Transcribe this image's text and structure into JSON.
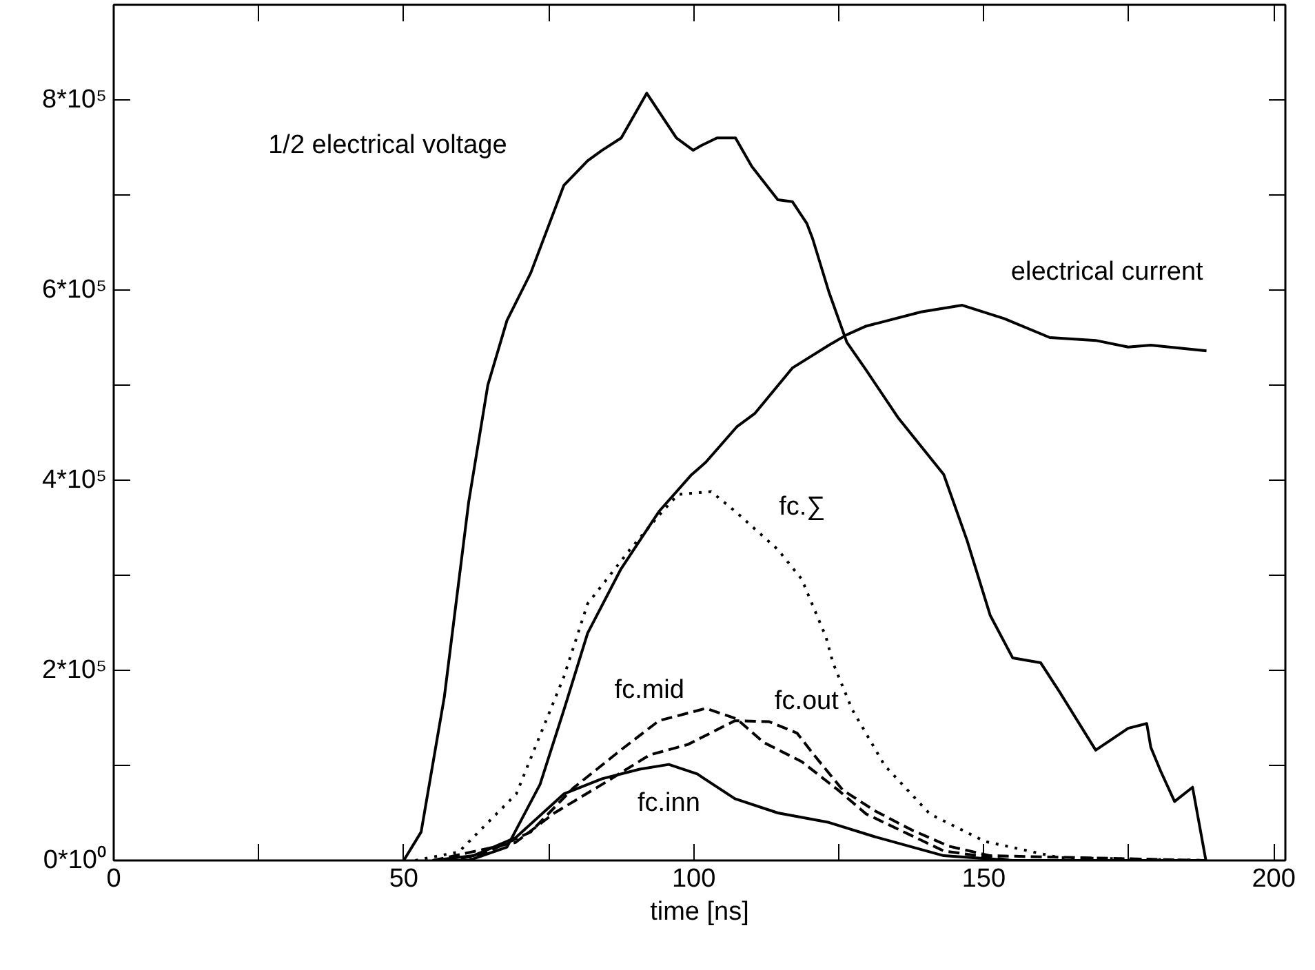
{
  "chart_data": {
    "type": "line",
    "xlabel": "time [ns]",
    "xlim": [
      0,
      202
    ],
    "ylim": [
      0,
      900000
    ],
    "xticks": [
      0,
      {
        "value": 25,
        "label": null
      },
      50,
      {
        "value": 75,
        "label": null
      },
      100,
      {
        "value": 125,
        "label": null
      },
      150,
      {
        "value": 175,
        "label": null
      },
      200
    ],
    "yticks": [
      {
        "value": 0,
        "label": "0*10⁰"
      },
      {
        "value": 100000,
        "label": null
      },
      {
        "value": 200000,
        "label": "2*10⁵"
      },
      {
        "value": 300000,
        "label": null
      },
      {
        "value": 400000,
        "label": "4*10⁵"
      },
      {
        "value": 500000,
        "label": null
      },
      {
        "value": 600000,
        "label": "6*10⁵"
      },
      {
        "value": 700000,
        "label": null
      },
      {
        "value": 800000,
        "label": "8*10⁵"
      }
    ],
    "grid": false,
    "series": [
      {
        "name": "1/2 electrical voltage",
        "color": "#000000",
        "line_style": "solid",
        "x": [
          50,
          53,
          57,
          61.2,
          64.5,
          67.8,
          71.9,
          77.6,
          81.7,
          84.2,
          87.5,
          91.9,
          97,
          99.9,
          101.3,
          104,
          107.2,
          110,
          114.5,
          117,
          119.5,
          120.5,
          123.3,
          126.4,
          129.7,
          135.2,
          143.1,
          147.1,
          151.1,
          155,
          159.8,
          163,
          169.3,
          174.9,
          178.1,
          178.8,
          180.5,
          182.9,
          186,
          188.3
        ],
        "values": [
          0,
          30000,
          172000,
          377000,
          500000,
          568000,
          618000,
          710000,
          736000,
          747000,
          760000,
          807000,
          760000,
          747000,
          752000,
          760000,
          760000,
          730000,
          695000,
          693000,
          670000,
          654000,
          598000,
          545000,
          516000,
          466000,
          406000,
          337000,
          258000,
          213000,
          208000,
          178000,
          116000,
          139000,
          144000,
          119000,
          94000,
          62000,
          77000,
          0
        ]
      },
      {
        "name": "electrical current",
        "color": "#000000",
        "line_style": "solid",
        "x": [
          55,
          61.2,
          67.8,
          73.5,
          77.6,
          81.7,
          87.4,
          94,
          99.5,
          102.1,
          107.4,
          110.5,
          117,
          123.3,
          126.4,
          129.7,
          139.2,
          146.3,
          153.5,
          161.4,
          169.3,
          174.9,
          178.8,
          188.4
        ],
        "values": [
          0,
          0,
          14000,
          80000,
          158000,
          239000,
          306000,
          367000,
          405000,
          419000,
          456000,
          470000,
          518000,
          542000,
          553000,
          562000,
          577000,
          584000,
          570000,
          550000,
          547000,
          540000,
          542000,
          536000
        ]
      },
      {
        "name": "fc.∑",
        "color": "#000000",
        "line_style": "dotted",
        "x": [
          52,
          59.5,
          69.4,
          77.6,
          81.7,
          89,
          94,
          97.3,
          103,
          107.2,
          114.5,
          118.6,
          122.8,
          124,
          127.3,
          132.9,
          140.7,
          150.2,
          163,
          188.3
        ],
        "values": [
          0,
          9000,
          70000,
          193000,
          270000,
          327000,
          363000,
          385000,
          388000,
          367000,
          327000,
          296000,
          235000,
          208000,
          159000,
          100000,
          49000,
          20000,
          3000,
          0
        ]
      },
      {
        "name": "fc.mid",
        "color": "#000000",
        "line_style": "dashed",
        "x": [
          57,
          63,
          71.9,
          79.2,
          87.4,
          94,
          102.1,
          107.4,
          112.1,
          118.6,
          124.9,
          129.7,
          135.2,
          143.1,
          155,
          186
        ],
        "values": [
          0,
          5000,
          30000,
          76000,
          116000,
          147000,
          160000,
          149000,
          124000,
          104000,
          74000,
          49000,
          33000,
          10000,
          0,
          0
        ]
      },
      {
        "name": "fc.out",
        "color": "#000000",
        "line_style": "dashed",
        "x": [
          55,
          69.3,
          76,
          84.2,
          92.4,
          99,
          107.1,
          113,
          117.8,
          121,
          125.7,
          131.3,
          137.6,
          144,
          151.1,
          188.3
        ],
        "values": [
          0,
          19000,
          50000,
          80000,
          111000,
          122000,
          147000,
          146000,
          134000,
          109000,
          74000,
          52000,
          32000,
          15000,
          5000,
          0
        ]
      },
      {
        "name": "fc.inn",
        "color": "#000000",
        "line_style": "solid",
        "x": [
          55,
          62,
          69.3,
          77.6,
          84.2,
          90.7,
          95.7,
          100.6,
          107.1,
          114.5,
          123.3,
          131.2,
          143.1,
          155,
          188.3
        ],
        "values": [
          0,
          5000,
          24000,
          70000,
          86000,
          96000,
          101000,
          91000,
          65000,
          50000,
          40000,
          25000,
          5000,
          0,
          0
        ]
      }
    ]
  }
}
